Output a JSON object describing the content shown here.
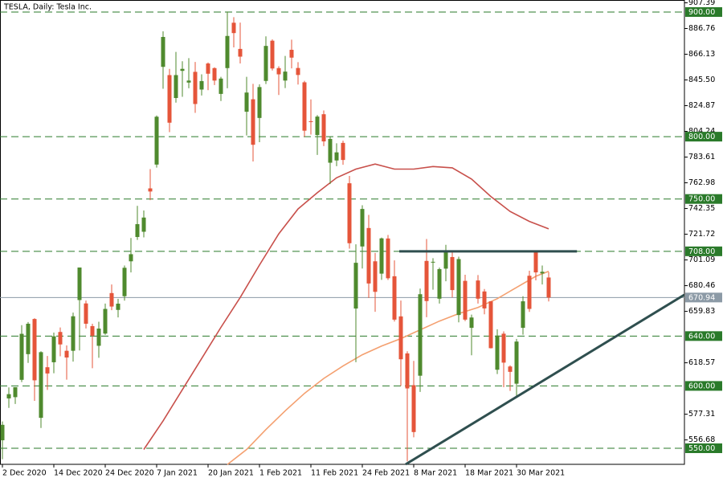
{
  "chart_data": {
    "type": "candlestick",
    "title": "TESLA, Daily:  Tesla Inc.",
    "categories": [
      "2 Dec 2020",
      null,
      null,
      null,
      null,
      null,
      null,
      null,
      "14 Dec 2020",
      null,
      null,
      null,
      null,
      null,
      null,
      null,
      "24 Dec 2020",
      null,
      null,
      null,
      null,
      null,
      null,
      null,
      "7 Jan 2021",
      null,
      null,
      null,
      null,
      null,
      null,
      null,
      "20 Jan 2021",
      null,
      null,
      null,
      null,
      null,
      null,
      null,
      "1 Feb 2021",
      null,
      null,
      null,
      null,
      null,
      null,
      null,
      "11 Feb 2021",
      null,
      null,
      null,
      null,
      null,
      null,
      null,
      "24 Feb 2021",
      null,
      null,
      null,
      null,
      null,
      null,
      null,
      "8 Mar 2021",
      null,
      null,
      null,
      null,
      null,
      null,
      null,
      "18 Mar 2021",
      null,
      null,
      null,
      null,
      null,
      null,
      null,
      "30 Mar 2021",
      null,
      null,
      null,
      null,
      null
    ],
    "open": [
      556.4,
      590.0,
      591.0,
      604.9,
      625.5,
      653.7,
      574.4,
      615.0,
      619.0,
      643.3,
      628.2,
      628.2,
      668.9,
      666.2,
      648.0,
      632.2,
      642.0,
      674.5,
      661.0,
      672.0,
      699.99,
      719.5,
      723.7,
      758.5,
      777.6,
      856.0,
      849.4,
      831.0,
      852.8,
      843.4,
      852.0,
      837.8,
      858.7,
      855.0,
      834.3,
      855.0,
      891.4,
      870.4,
      820.0,
      830.0,
      815.0,
      844.7,
      877.0,
      855.0,
      845.0,
      869.7,
      855.1,
      843.6,
      812.4,
      801.3,
      818.0,
      779.1,
      780.9,
      795.0,
      762.6,
      662.1,
      711.9,
      726.7,
      700.0,
      690.1,
      718.3,
      687.99,
      655.8,
      626.1,
      600.6,
      608.2,
      700.3,
      699.4,
      670.0,
      694.1,
      703.4,
      656.9,
      684.3,
      646.6,
      684.6,
      675.8,
      667.9,
      613.0,
      641.9,
      615.6,
      601.8,
      646.6,
      688.4,
      707.7,
      690.3,
      687.0
    ],
    "high": [
      571.5,
      598.8,
      599.0,
      648.8,
      651.3,
      654.3,
      627.8,
      624.0,
      642.8,
      646.9,
      632.5,
      658.8,
      695.0,
      668.5,
      649.9,
      651.5,
      666.1,
      681.4,
      669.9,
      696.6,
      718.7,
      744.5,
      740.8,
      774.0,
      817.0,
      884.5,
      854.4,
      868.0,
      860.5,
      863.0,
      859.9,
      850.0,
      859.5,
      855.7,
      848.0,
      900.4,
      895.9,
      891.5,
      848.0,
      842.4,
      842.0,
      880.5,
      878.1,
      856.5,
      864.8,
      877.8,
      859.8,
      844.8,
      829.9,
      817.3,
      821.0,
      799.8,
      794.7,
      796.8,
      768.5,
      713.6,
      745.0,
      737.2,
      706.7,
      719.0,
      721.1,
      700.7,
      668.5,
      627.8,
      620.1,
      678.1,
      717.9,
      702.5,
      694.9,
      713.2,
      707.3,
      703.7,
      689.2,
      657.2,
      689.0,
      677.8,
      668.0,
      645.5,
      643.8,
      616.5,
      637.7,
      672.0,
      692.4,
      708.2,
      696.6,
      691.4
    ],
    "low": [
      541.2,
      582.4,
      585.5,
      603.1,
      618.5,
      588.0,
      566.3,
      596.8,
      610.2,
      623.8,
      605.0,
      619.5,
      628.5,
      646.1,
      614.2,
      622.6,
      641.0,
      660.8,
      655.0,
      668.4,
      691.1,
      717.2,
      719.2,
      749.1,
      775.2,
      838.4,
      803.6,
      827.3,
      832.0,
      838.8,
      819.1,
      833.0,
      837.3,
      841.4,
      828.6,
      838.8,
      871.6,
      858.7,
      801.0,
      780.1,
      795.6,
      842.2,
      853.1,
      833.4,
      839.0,
      854.8,
      841.8,
      800.0,
      801.7,
      785.3,
      792.4,
      762.0,
      776.3,
      777.4,
      710.2,
      619.0,
      694.2,
      670.6,
      659.5,
      685.1,
      685.0,
      651.7,
      600.0,
      539.5,
      558.8,
      595.2,
      655.1,
      677.2,
      666.1,
      684.0,
      671.0,
      651.0,
      652.0,
      624.6,
      666.1,
      657.5,
      630.1,
      609.5,
      599.0,
      596.0,
      591.0,
      641.1,
      659.4,
      684.7,
      681.4,
      667.8
    ],
    "close": [
      568.8,
      593.4,
      599.0,
      641.8,
      649.9,
      604.5,
      627.1,
      610.0,
      639.8,
      633.3,
      622.8,
      655.9,
      695.0,
      649.9,
      640.3,
      646.0,
      661.8,
      663.7,
      666.0,
      694.8,
      705.7,
      729.8,
      735.1,
      756.0,
      816.0,
      880.0,
      811.2,
      849.4,
      854.4,
      845.0,
      826.2,
      844.6,
      850.5,
      845.0,
      846.6,
      880.8,
      883.1,
      864.2,
      835.4,
      793.5,
      839.8,
      872.8,
      854.7,
      850.0,
      852.2,
      863.4,
      849.5,
      804.8,
      811.7,
      816.1,
      796.2,
      798.2,
      787.4,
      781.3,
      714.5,
      698.8,
      742.0,
      682.2,
      675.5,
      718.4,
      686.4,
      653.2,
      621.4,
      598.0,
      563.0,
      673.6,
      668.1,
      699.6,
      693.7,
      707.9,
      676.9,
      701.8,
      653.2,
      654.9,
      670.0,
      662.2,
      630.3,
      640.4,
      618.7,
      611.3,
      635.6,
      667.9,
      661.8,
      691.1,
      691.6,
      670.94
    ],
    "up_color": "#4f8a2e",
    "down_color": "#e5553a",
    "moving_averages": [
      {
        "color": "#c8504b",
        "x": [
          22,
          25,
          28,
          31,
          34,
          37,
          40,
          43,
          46,
          49,
          52,
          55,
          58,
          61,
          64,
          67,
          70,
          73,
          76,
          79,
          82,
          85
        ],
        "values": [
          549,
          572,
          597,
          622,
          647,
          671,
          697,
          722,
          742,
          755,
          767,
          774,
          778,
          774,
          774,
          776,
          775,
          766,
          752,
          740,
          732,
          726
        ]
      },
      {
        "color": "#f4a070",
        "x": [
          35,
          38,
          41,
          44,
          47,
          50,
          53,
          56,
          59,
          62,
          65,
          68,
          71,
          74,
          77,
          80,
          83,
          85
        ],
        "values": [
          537,
          549,
          565,
          580,
          594,
          606,
          616,
          625,
          632,
          638,
          645,
          652,
          658,
          663,
          670,
          679,
          688,
          692
        ]
      }
    ],
    "trendlines": [
      {
        "color": "#2f4f4f",
        "x": [
          62.75,
          106.1
        ],
        "values": [
          537.1,
          673.1
        ]
      },
      {
        "color": "#2f4f4f",
        "x": [
          61.75,
          89.4
        ],
        "values": [
          708,
          708
        ]
      }
    ],
    "levels": [
      {
        "value": 900,
        "label": "900.00"
      },
      {
        "value": 800,
        "label": "800.00"
      },
      {
        "value": 750,
        "label": "750.00"
      },
      {
        "value": 708,
        "label": "708.00"
      },
      {
        "value": 640,
        "label": "640.00"
      },
      {
        "value": 600,
        "label": "600.00"
      },
      {
        "value": 550,
        "label": "550.00"
      }
    ],
    "level_color": "#2a7a2a",
    "price_line": {
      "value": 670.94,
      "label": "670.94",
      "color": "#8c9aa6"
    },
    "xlim": [
      -0.375,
      106.125
    ],
    "ylim": [
      537.1,
      907.39
    ],
    "yticks": [
      907.39,
      886.76,
      866.13,
      {
        "value": 845.5,
        "label": "845.50"
      },
      824.87,
      804.24,
      783.61,
      762.98,
      742.35,
      721.72,
      701.09,
      680.46,
      659.83,
      618.57,
      577.31,
      556.68
    ]
  }
}
